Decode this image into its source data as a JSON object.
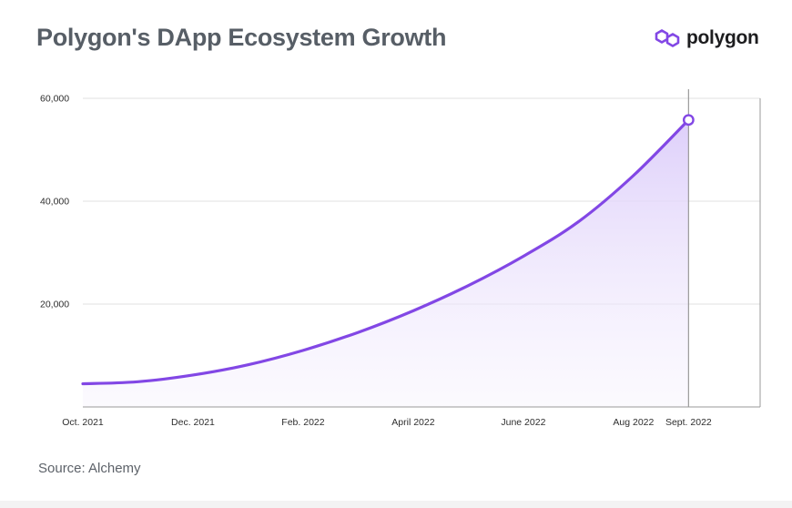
{
  "header": {
    "title": "Polygon's DApp Ecosystem Growth",
    "logo_text": "polygon"
  },
  "footer": {
    "source": "Source: Alchemy"
  },
  "colors": {
    "line": "#8247e5",
    "fill_top": "#e7dcfb",
    "grid": "#e2e2e2",
    "axis": "#9a9a9a",
    "title": "#575e66",
    "logo": "#8247e5"
  },
  "chart_data": {
    "type": "area",
    "title": "Polygon's DApp Ecosystem Growth",
    "xlabel": "",
    "ylabel": "",
    "x": [
      0,
      1,
      2,
      3,
      4,
      5,
      6,
      7,
      8,
      9,
      10,
      11
    ],
    "values": [
      4500,
      4900,
      6200,
      8200,
      11000,
      14500,
      18700,
      23600,
      29300,
      36000,
      45000,
      55800
    ],
    "x_tick_positions": [
      0,
      2,
      4,
      6,
      8,
      10,
      11
    ],
    "x_tick_labels": [
      "Oct. 2021",
      "Dec. 2021",
      "Feb. 2022",
      "April 2022",
      "June 2022",
      "Aug 2022",
      "Sept. 2022"
    ],
    "yticks": [
      20000,
      40000,
      60000
    ],
    "ytick_labels": [
      "20,000",
      "40,000",
      "60,000"
    ],
    "ylim": [
      0,
      60000
    ],
    "xlim": [
      0,
      12.3
    ],
    "grid": true,
    "highlight_index": 11
  }
}
